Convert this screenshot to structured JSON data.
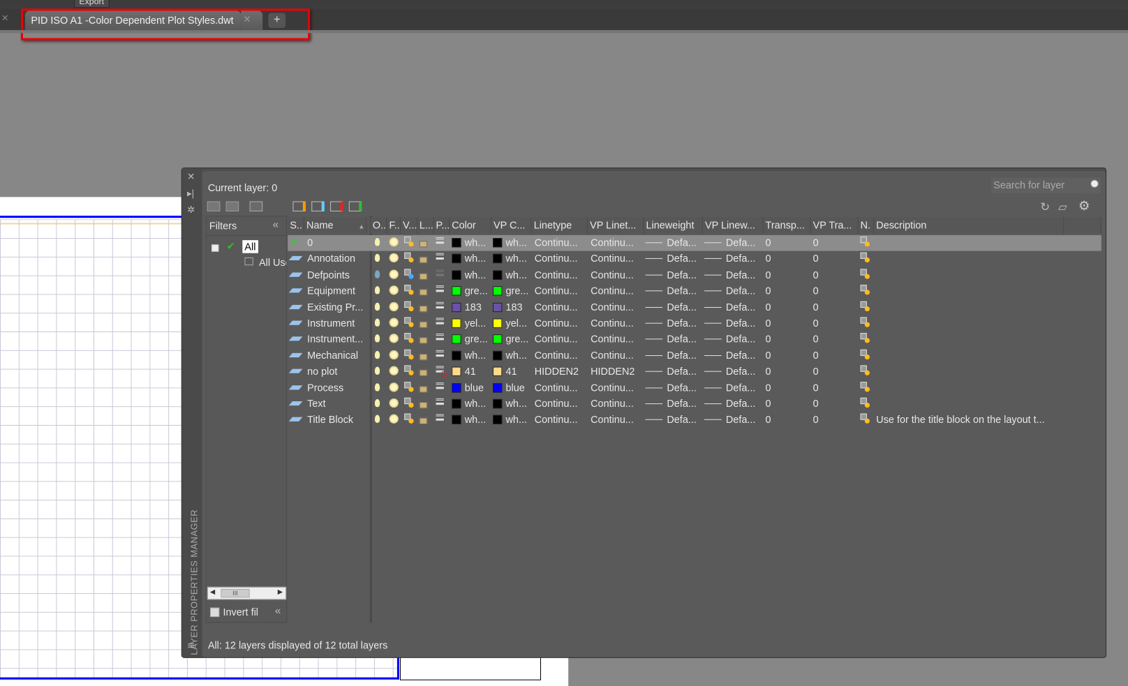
{
  "menubar": {
    "export_label": "Export"
  },
  "tabs": {
    "active_title": "PID ISO A1 -Color Dependent Plot Styles.dwt",
    "close_icon": "close-icon",
    "new_tab_label": "+"
  },
  "panel": {
    "vertical_title": "LAYER PROPERTIES MANAGER",
    "current_layer": "Current layer: 0",
    "search_placeholder": "Search for layer",
    "filters": {
      "title": "Filters",
      "tree": [
        "All",
        "All Used Layers"
      ],
      "invert_label": "Invert fil",
      "scroll_thumb": "III"
    },
    "columns": [
      "S..",
      "Name",
      "O..",
      "F...",
      "V...",
      "L...",
      "P...",
      "Color",
      "VP C...",
      "Linetype",
      "VP Linet...",
      "Lineweight",
      "VP Linew...",
      "Transp...",
      "VP Tra...",
      "N.",
      "Description"
    ],
    "rows": [
      {
        "name": "0",
        "current": true,
        "color": "wh...",
        "color_hex": "#000000",
        "vp_color": "wh...",
        "linetype": "Continu...",
        "vp_linetype": "Continu...",
        "lineweight": "Defa...",
        "vp_lineweight": "Defa...",
        "transp": "0",
        "vp_transp": "0",
        "description": "",
        "on": true,
        "noplot": false
      },
      {
        "name": "Annotation",
        "color": "wh...",
        "color_hex": "#000000",
        "vp_color": "wh...",
        "linetype": "Continu...",
        "vp_linetype": "Continu...",
        "lineweight": "Defa...",
        "vp_lineweight": "Defa...",
        "transp": "0",
        "vp_transp": "0",
        "description": ""
      },
      {
        "name": "Defpoints",
        "color": "wh...",
        "color_hex": "#000000",
        "vp_color": "wh...",
        "linetype": "Continu...",
        "vp_linetype": "Continu...",
        "lineweight": "Defa...",
        "vp_lineweight": "Defa...",
        "transp": "0",
        "vp_transp": "0",
        "description": "",
        "defpoints": true
      },
      {
        "name": "Equipment",
        "color": "gre...",
        "color_hex": "#00ff00",
        "vp_color": "gre...",
        "linetype": "Continu...",
        "vp_linetype": "Continu...",
        "lineweight": "Defa...",
        "vp_lineweight": "Defa...",
        "transp": "0",
        "vp_transp": "0",
        "description": ""
      },
      {
        "name": "Existing Pr...",
        "color": "183",
        "color_hex": "#6a52a8",
        "vp_color": "183",
        "linetype": "Continu...",
        "vp_linetype": "Continu...",
        "lineweight": "Defa...",
        "vp_lineweight": "Defa...",
        "transp": "0",
        "vp_transp": "0",
        "description": ""
      },
      {
        "name": "Instrument",
        "color": "yel...",
        "color_hex": "#ffff00",
        "vp_color": "yel...",
        "linetype": "Continu...",
        "vp_linetype": "Continu...",
        "lineweight": "Defa...",
        "vp_lineweight": "Defa...",
        "transp": "0",
        "vp_transp": "0",
        "description": ""
      },
      {
        "name": "Instrument...",
        "color": "gre...",
        "color_hex": "#00ff00",
        "vp_color": "gre...",
        "linetype": "Continu...",
        "vp_linetype": "Continu...",
        "lineweight": "Defa...",
        "vp_lineweight": "Defa...",
        "transp": "0",
        "vp_transp": "0",
        "description": ""
      },
      {
        "name": "Mechanical",
        "color": "wh...",
        "color_hex": "#000000",
        "vp_color": "wh...",
        "linetype": "Continu...",
        "vp_linetype": "Continu...",
        "lineweight": "Defa...",
        "vp_lineweight": "Defa...",
        "transp": "0",
        "vp_transp": "0",
        "description": ""
      },
      {
        "name": "no plot",
        "color": "41",
        "color_hex": "#ffd98a",
        "vp_color": "41",
        "linetype": "HIDDEN2",
        "vp_linetype": "HIDDEN2",
        "lineweight": "Defa...",
        "vp_lineweight": "Defa...",
        "transp": "0",
        "vp_transp": "0",
        "description": "",
        "noplot": true
      },
      {
        "name": "Process",
        "color": "blue",
        "color_hex": "#0000ff",
        "vp_color": "blue",
        "linetype": "Continu...",
        "vp_linetype": "Continu...",
        "lineweight": "Defa...",
        "vp_lineweight": "Defa...",
        "transp": "0",
        "vp_transp": "0",
        "description": ""
      },
      {
        "name": "Text",
        "color": "wh...",
        "color_hex": "#000000",
        "vp_color": "wh...",
        "linetype": "Continu...",
        "vp_linetype": "Continu...",
        "lineweight": "Defa...",
        "vp_lineweight": "Defa...",
        "transp": "0",
        "vp_transp": "0",
        "description": ""
      },
      {
        "name": "Title Block",
        "color": "wh...",
        "color_hex": "#000000",
        "vp_color": "wh...",
        "linetype": "Continu...",
        "vp_linetype": "Continu...",
        "lineweight": "Defa...",
        "vp_lineweight": "Defa...",
        "transp": "0",
        "vp_transp": "0",
        "description": "Use for the title block on the layout t..."
      }
    ],
    "status": "All: 12 layers displayed of 12 total layers"
  },
  "colors": {
    "highlight": "#e00000",
    "selected_row": "#8c8c8c",
    "panel_bg": "#5a5a5a"
  }
}
